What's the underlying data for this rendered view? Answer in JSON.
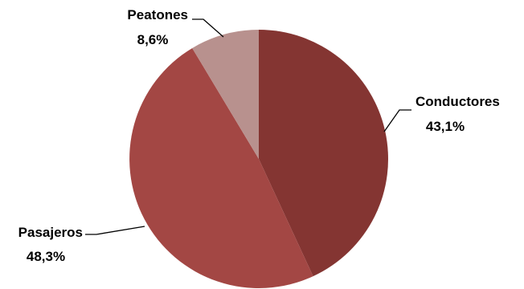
{
  "chart_data": {
    "type": "pie",
    "title": "",
    "slices": [
      {
        "label": "Conductores",
        "value": 43.1,
        "value_label": "43,1%",
        "color": "#843532"
      },
      {
        "label": "Pasajeros",
        "value": 48.3,
        "value_label": "48,3%",
        "color": "#A34744"
      },
      {
        "label": "Peatones",
        "value": 8.6,
        "value_label": "8,6%",
        "color": "#B8918E"
      }
    ],
    "start": "12 o'clock",
    "direction": "clockwise",
    "legend": "none",
    "label_style": "outside with leader lines"
  }
}
